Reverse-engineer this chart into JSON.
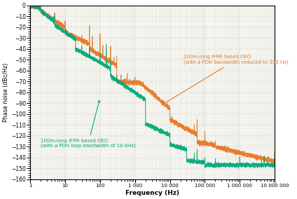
{
  "title": "",
  "xlabel": "Frequency (Hz)",
  "ylabel": "Phase noise (dBc/Hz)",
  "xlim": [
    1,
    10000000
  ],
  "ylim": [
    -160,
    0
  ],
  "yticks": [
    0,
    -10,
    -20,
    -30,
    -40,
    -50,
    -60,
    -70,
    -80,
    -90,
    -100,
    -110,
    -120,
    -130,
    -140,
    -150,
    -160
  ],
  "xtick_labels": [
    "1",
    "10",
    "100",
    "1 000",
    "10 000",
    "100 000",
    "1 000 000",
    "10 000 000"
  ],
  "xtick_values": [
    1,
    10,
    100,
    1000,
    10000,
    100000,
    1000000,
    10000000
  ],
  "color_orange": "#E87722",
  "color_green": "#00A87A",
  "bg_color": "#f5f5f5",
  "annotation_orange": "100m-long IFRR based OEO\n(with a PDH bandwidth reduced to 300 Hz)",
  "annotation_green": "100m-long IFRR based OEO\n(with a PDH loop bandwidth of 10 kHz)"
}
